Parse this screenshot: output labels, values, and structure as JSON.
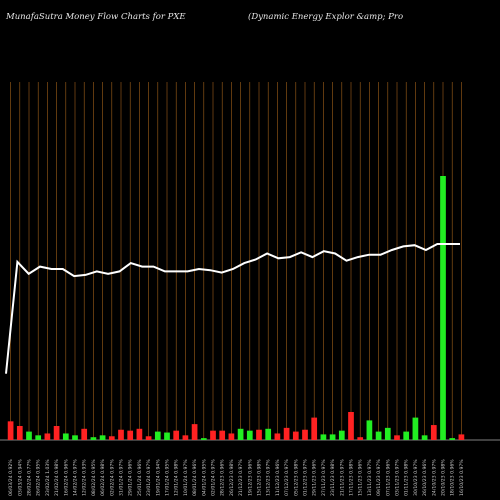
{
  "header": {
    "title_left": "MunafaSutra  Money Flow  Charts for PXE",
    "title_right": "(Dynamic Energy Explor &amp; Pro"
  },
  "chart_data": {
    "type": "bar",
    "title": "MunafaSutra  Money Flow  Charts for PXE",
    "subtitle": "(Dynamic Energy Explor &amp; Pro",
    "xlabel": "",
    "ylabel": "",
    "categories": [
      "06/03/24 0.92%",
      "03/03/24 0.94%",
      "28/02/24 0.77%",
      "26/02/24 0.95%",
      "23/02/24 1.03%",
      "21/02/24 0.98%",
      "16/02/24 0.96%",
      "14/02/24 0.97%",
      "12/02/24 0.93%",
      "08/02/24 0.95%",
      "06/02/24 0.98%",
      "02/02/24 0.97%",
      "31/01/24 0.97%",
      "29/01/24 0.96%",
      "25/01/24 0.96%",
      "23/01/24 0.97%",
      "19/01/24 0.94%",
      "17/01/24 0.95%",
      "12/01/24 0.98%",
      "10/01/24 0.97%",
      "08/01/24 0.96%",
      "04/01/24 0.95%",
      "02/01/24 0.97%",
      "28/12/23 0.96%",
      "26/12/23 0.98%",
      "21/12/23 0.97%",
      "19/12/23 0.96%",
      "15/12/23 0.98%",
      "13/12/23 0.97%",
      "11/12/23 0.96%",
      "07/12/23 0.97%",
      "05/12/23 0.98%",
      "01/12/23 0.97%",
      "29/11/23 0.96%",
      "27/11/23 0.97%",
      "23/11/23 0.98%",
      "21/11/23 0.97%",
      "17/11/23 0.98%",
      "15/11/23 0.96%",
      "13/11/23 0.97%",
      "09/11/23 0.97%",
      "07/11/23 0.96%",
      "03/11/23 0.97%",
      "01/11/23 0.98%",
      "30/10/23 0.97%",
      "26/10/23 0.96%",
      "24/10/23 0.97%",
      "20/10/23 0.98%",
      "18/10/23 0.96%",
      "16/10/23 0.97%"
    ],
    "volume_bars": {
      "colors": {
        "up": "#22ee22",
        "down": "#ff2222"
      },
      "directions": [
        "down",
        "down",
        "up",
        "up",
        "down",
        "down",
        "up",
        "up",
        "down",
        "up",
        "up",
        "down",
        "down",
        "down",
        "down",
        "down",
        "up",
        "up",
        "down",
        "down",
        "down",
        "up",
        "down",
        "down",
        "down",
        "up",
        "up",
        "down",
        "up",
        "down",
        "down",
        "down",
        "down",
        "down",
        "up",
        "up",
        "up",
        "down",
        "down",
        "up",
        "up",
        "up",
        "down",
        "up",
        "up",
        "up",
        "down",
        "down",
        "up",
        "down"
      ],
      "values": [
        20,
        15,
        9,
        5,
        7,
        15,
        7,
        5,
        12,
        3,
        5,
        4,
        11,
        10,
        12,
        4,
        9,
        8,
        10,
        5,
        17,
        2,
        10,
        10,
        7,
        12,
        10,
        11,
        12,
        7,
        13,
        9,
        11,
        24,
        6,
        6,
        10,
        30,
        3,
        21,
        9,
        13,
        5,
        9,
        24,
        5,
        16,
        29,
        2,
        6
      ]
    },
    "line_series": {
      "color": "#ffffff",
      "values": [
        0.06,
        0.53,
        0.48,
        0.51,
        0.5,
        0.5,
        0.47,
        0.475,
        0.49,
        0.48,
        0.49,
        0.525,
        0.51,
        0.51,
        0.49,
        0.49,
        0.49,
        0.5,
        0.495,
        0.485,
        0.5,
        0.525,
        0.54,
        0.565,
        0.545,
        0.55,
        0.57,
        0.55,
        0.575,
        0.565,
        0.535,
        0.55,
        0.56,
        0.56,
        0.58,
        0.595,
        0.6,
        0.58,
        0.605,
        0.605,
        0.605
      ]
    },
    "highlight_bar": {
      "category_index": 47,
      "value": 100,
      "color": "#22ee22"
    },
    "grid": {
      "vertical_lines": true,
      "color": "#a0601a"
    },
    "ylim": [
      0,
      100
    ]
  }
}
